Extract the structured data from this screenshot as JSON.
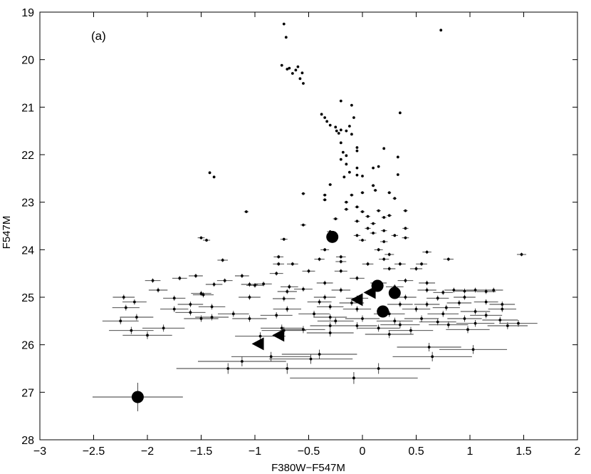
{
  "chart_data": {
    "type": "scatter",
    "title": "",
    "panel_label": "(a)",
    "xlabel": "F380W−F547M",
    "ylabel": "F547M",
    "xlim": [
      -3,
      2
    ],
    "ylim": [
      19,
      28
    ],
    "y_inverted": true,
    "grid": false,
    "legend": "none",
    "x_ticks": [
      -3,
      -2.5,
      -2,
      -1.5,
      -1,
      -0.5,
      0,
      0.5,
      1,
      1.5,
      2
    ],
    "x_tick_labels": [
      "−3",
      "−2.5",
      "−2",
      "−1.5",
      "−1",
      "−0.5",
      "0",
      "0.5",
      "1",
      "1.5",
      "2"
    ],
    "y_ticks": [
      19,
      20,
      21,
      22,
      23,
      24,
      25,
      26,
      27,
      28
    ],
    "y_tick_labels": [
      "19",
      "20",
      "21",
      "22",
      "23",
      "24",
      "25",
      "26",
      "27",
      "28"
    ],
    "colors": {
      "points": "#000000",
      "error_bars": "#333333",
      "axes": "#000000"
    },
    "series": [
      {
        "marker": "dot",
        "points": [
          [
            -0.73,
            19.25
          ],
          [
            -0.71,
            19.53
          ],
          [
            0.73,
            19.38
          ],
          [
            -0.75,
            20.12
          ],
          [
            -0.68,
            20.18
          ],
          [
            -0.65,
            20.29
          ],
          [
            -0.6,
            20.15
          ],
          [
            -0.56,
            20.28
          ],
          [
            -0.7,
            20.2
          ],
          [
            -0.58,
            20.4
          ],
          [
            -0.55,
            20.5
          ],
          [
            -0.62,
            20.22
          ],
          [
            -0.2,
            20.87
          ],
          [
            -0.1,
            20.96
          ],
          [
            -0.38,
            21.15
          ],
          [
            -0.35,
            21.22
          ],
          [
            -0.33,
            21.3
          ],
          [
            -0.3,
            21.38
          ],
          [
            -0.25,
            21.42
          ],
          [
            -0.24,
            21.5
          ],
          [
            -0.22,
            21.55
          ],
          [
            -0.2,
            21.48
          ],
          [
            -0.15,
            21.5
          ],
          [
            -0.1,
            21.57
          ],
          [
            -0.12,
            21.4
          ],
          [
            -0.08,
            21.22
          ],
          [
            0.35,
            21.12
          ],
          [
            -0.2,
            21.75
          ],
          [
            -0.18,
            21.95
          ],
          [
            -0.15,
            22.02
          ],
          [
            -0.05,
            21.85
          ],
          [
            -0.05,
            21.92
          ],
          [
            -0.2,
            22.1
          ],
          [
            -0.15,
            22.2
          ],
          [
            0.2,
            21.87
          ],
          [
            0.33,
            22.05
          ],
          [
            -0.05,
            22.28
          ],
          [
            -0.12,
            22.37
          ],
          [
            -0.05,
            22.43
          ],
          [
            0.0,
            22.45
          ],
          [
            0.1,
            22.28
          ],
          [
            0.15,
            22.25
          ],
          [
            0.33,
            22.42
          ],
          [
            -1.42,
            22.38
          ],
          [
            -1.38,
            22.47
          ],
          [
            -0.17,
            22.47
          ],
          [
            -0.3,
            22.63
          ],
          [
            0.1,
            22.65
          ],
          [
            -0.55,
            22.82
          ],
          [
            -0.35,
            22.85
          ],
          [
            -0.35,
            22.95
          ],
          [
            -0.1,
            22.85
          ],
          [
            0.0,
            22.8
          ],
          [
            0.12,
            22.75
          ],
          [
            0.25,
            22.8
          ],
          [
            0.3,
            22.92
          ],
          [
            -0.15,
            23.0
          ],
          [
            -0.05,
            23.1
          ],
          [
            -1.08,
            23.2
          ],
          [
            -0.15,
            23.15
          ],
          [
            0.0,
            23.2
          ],
          [
            0.05,
            23.3
          ],
          [
            0.15,
            23.18
          ],
          [
            0.25,
            23.28
          ],
          [
            0.4,
            23.18
          ],
          [
            -0.25,
            23.35
          ],
          [
            -0.05,
            23.4
          ],
          [
            0.1,
            23.45
          ],
          [
            0.2,
            23.32
          ],
          [
            -0.55,
            23.48
          ],
          [
            0.05,
            23.55
          ],
          [
            0.2,
            23.6
          ],
          [
            0.4,
            23.55
          ],
          [
            -0.3,
            23.62
          ],
          [
            0.1,
            23.65
          ],
          [
            -1.5,
            23.75
          ],
          [
            -1.45,
            23.8
          ],
          [
            -0.05,
            23.7
          ],
          [
            0.3,
            23.7
          ],
          [
            -0.73,
            23.78
          ],
          [
            0.0,
            23.8
          ],
          [
            0.2,
            23.83
          ],
          [
            0.4,
            23.75
          ],
          [
            -0.35,
            24.0
          ],
          [
            0.15,
            24.0
          ],
          [
            0.25,
            24.1
          ],
          [
            -0.2,
            24.15
          ],
          [
            0.2,
            24.2
          ],
          [
            0.6,
            24.05
          ],
          [
            -0.78,
            24.15
          ],
          [
            -0.4,
            24.2
          ],
          [
            -1.3,
            24.22
          ],
          [
            -0.78,
            24.3
          ],
          [
            -0.65,
            24.3
          ],
          [
            -0.2,
            24.25
          ],
          [
            0.05,
            24.3
          ],
          [
            0.35,
            24.3
          ],
          [
            0.55,
            24.3
          ],
          [
            0.8,
            24.2
          ],
          [
            1.48,
            24.1
          ],
          [
            -0.5,
            24.45
          ],
          [
            -0.8,
            24.5
          ],
          [
            -0.2,
            24.45
          ],
          [
            0.25,
            24.4
          ],
          [
            0.5,
            24.4
          ],
          [
            -1.12,
            24.55
          ],
          [
            -1.55,
            24.55
          ],
          [
            -1.28,
            24.65
          ],
          [
            -1.38,
            24.73
          ],
          [
            -1.05,
            24.73
          ],
          [
            -1.0,
            24.75
          ],
          [
            -0.92,
            24.72
          ],
          [
            -0.68,
            24.78
          ],
          [
            -0.35,
            24.7
          ],
          [
            -0.05,
            24.6
          ],
          [
            0.15,
            24.7
          ],
          [
            0.4,
            24.65
          ],
          [
            0.6,
            24.7
          ],
          [
            -1.95,
            24.65
          ],
          [
            -1.7,
            24.6
          ],
          [
            -0.55,
            24.83
          ],
          [
            -0.2,
            24.85
          ],
          [
            0.3,
            24.78
          ],
          [
            0.6,
            24.85
          ],
          [
            -1.5,
            24.92
          ],
          [
            -1.48,
            24.95
          ],
          [
            -0.7,
            24.88
          ],
          [
            -1.9,
            24.85
          ],
          [
            0.85,
            24.85
          ],
          [
            0.95,
            24.87
          ],
          [
            1.05,
            24.85
          ],
          [
            1.15,
            24.88
          ],
          [
            1.22,
            24.85
          ],
          [
            0.75,
            24.9
          ],
          [
            -2.22,
            25.0
          ],
          [
            -1.75,
            25.02
          ],
          [
            -1.05,
            25.0
          ],
          [
            -0.73,
            25.03
          ],
          [
            -0.35,
            25.0
          ],
          [
            -0.05,
            25.02
          ],
          [
            0.4,
            25.0
          ],
          [
            0.7,
            25.02
          ],
          [
            0.95,
            25.0
          ],
          [
            -1.6,
            25.15
          ],
          [
            -2.12,
            25.1
          ],
          [
            -0.4,
            25.1
          ],
          [
            -0.1,
            25.12
          ],
          [
            0.35,
            25.15
          ],
          [
            0.6,
            25.15
          ],
          [
            0.9,
            25.12
          ],
          [
            1.15,
            25.1
          ],
          [
            1.3,
            25.15
          ],
          [
            -2.2,
            25.22
          ],
          [
            -1.75,
            25.25
          ],
          [
            -1.4,
            25.2
          ],
          [
            -0.7,
            25.25
          ],
          [
            -0.3,
            25.2
          ],
          [
            -0.05,
            25.25
          ],
          [
            0.5,
            25.25
          ],
          [
            0.78,
            25.22
          ],
          [
            1.05,
            25.3
          ],
          [
            1.3,
            25.25
          ],
          [
            -1.6,
            25.32
          ],
          [
            -1.2,
            25.35
          ],
          [
            -0.8,
            25.38
          ],
          [
            -0.45,
            25.35
          ],
          [
            0.25,
            25.35
          ],
          [
            0.75,
            25.35
          ],
          [
            1.15,
            25.38
          ],
          [
            -2.1,
            25.42
          ],
          [
            -1.4,
            25.42
          ],
          [
            -1.05,
            25.45
          ],
          [
            -0.3,
            25.42
          ],
          [
            0.0,
            25.45
          ],
          [
            0.55,
            25.45
          ],
          [
            0.95,
            25.45
          ],
          [
            1.28,
            25.48
          ],
          [
            -2.25,
            25.5
          ],
          [
            -1.5,
            25.45
          ],
          [
            -0.25,
            25.5
          ],
          [
            0.3,
            25.5
          ],
          [
            0.7,
            25.52
          ],
          [
            1.05,
            25.55
          ],
          [
            1.45,
            25.55
          ],
          [
            -0.3,
            25.6
          ],
          [
            -0.05,
            25.6
          ],
          [
            0.35,
            25.58
          ],
          [
            0.8,
            25.58
          ],
          [
            1.35,
            25.6
          ],
          [
            -1.85,
            25.65
          ],
          [
            -2.15,
            25.7
          ],
          [
            -0.75,
            25.65
          ],
          [
            -0.55,
            25.68
          ],
          [
            0.15,
            25.65
          ],
          [
            0.45,
            25.7
          ],
          [
            0.98,
            25.68
          ],
          [
            -2.0,
            25.8
          ],
          [
            -0.95,
            25.82
          ],
          [
            -0.73,
            25.7
          ],
          [
            -0.3,
            25.75
          ],
          [
            0.25,
            25.78
          ],
          [
            0.62,
            26.05
          ],
          [
            1.03,
            26.1
          ],
          [
            -0.4,
            26.2
          ],
          [
            0.65,
            26.25
          ],
          [
            -0.85,
            26.25
          ],
          [
            -1.12,
            26.35
          ],
          [
            -0.48,
            26.3
          ],
          [
            -1.25,
            26.5
          ],
          [
            -0.7,
            26.5
          ],
          [
            0.15,
            26.5
          ],
          [
            -0.08,
            26.7
          ]
        ]
      },
      {
        "marker": "circle",
        "points": [
          [
            -0.28,
            23.73
          ],
          [
            0.14,
            24.76
          ],
          [
            0.3,
            24.91
          ],
          [
            0.19,
            25.3
          ],
          [
            -2.09,
            27.1
          ]
        ]
      },
      {
        "marker": "triangle-left",
        "points": [
          [
            0.07,
            24.9
          ],
          [
            -0.05,
            25.05
          ],
          [
            -0.78,
            25.8
          ],
          [
            -0.97,
            25.98
          ]
        ]
      }
    ]
  }
}
